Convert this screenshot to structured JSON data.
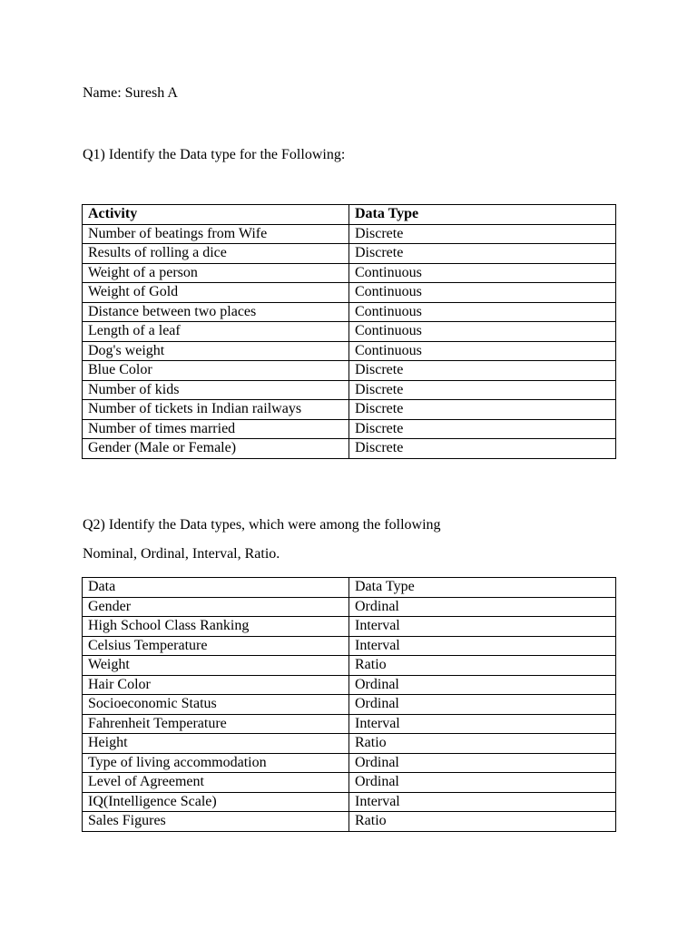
{
  "name_line": "Name: Suresh A",
  "q1": {
    "question": "Q1) Identify the Data type for the Following:",
    "headers": [
      "Activity",
      "Data Type"
    ],
    "rows": [
      [
        "Number of beatings from Wife",
        "Discrete"
      ],
      [
        "Results of rolling a dice",
        "Discrete"
      ],
      [
        "Weight of a person",
        "Continuous"
      ],
      [
        "Weight of Gold",
        "Continuous"
      ],
      [
        "Distance between two places",
        "Continuous"
      ],
      [
        "Length of a leaf",
        "Continuous"
      ],
      [
        "Dog's weight",
        "Continuous"
      ],
      [
        "Blue Color",
        "Discrete"
      ],
      [
        "Number of kids",
        "Discrete"
      ],
      [
        "Number of tickets in Indian railways",
        "Discrete"
      ],
      [
        "Number of times married",
        "Discrete"
      ],
      [
        "Gender (Male or Female)",
        "Discrete"
      ]
    ]
  },
  "q2": {
    "question": "Q2) Identify the Data types, which were among the following",
    "options_line": "Nominal, Ordinal, Interval, Ratio.",
    "headers": [
      "Data",
      "Data Type"
    ],
    "rows": [
      [
        "Gender",
        "Ordinal"
      ],
      [
        "High School Class Ranking",
        "Interval"
      ],
      [
        "Celsius Temperature",
        "Interval"
      ],
      [
        "Weight",
        "Ratio"
      ],
      [
        "Hair Color",
        "Ordinal"
      ],
      [
        "Socioeconomic Status",
        "Ordinal"
      ],
      [
        "Fahrenheit Temperature",
        "Interval"
      ],
      [
        "Height",
        "Ratio"
      ],
      [
        "Type of living accommodation",
        "Ordinal"
      ],
      [
        "Level of Agreement",
        "Ordinal"
      ],
      [
        "IQ(Intelligence Scale)",
        "Interval"
      ],
      [
        "Sales Figures",
        "Ratio"
      ]
    ]
  }
}
